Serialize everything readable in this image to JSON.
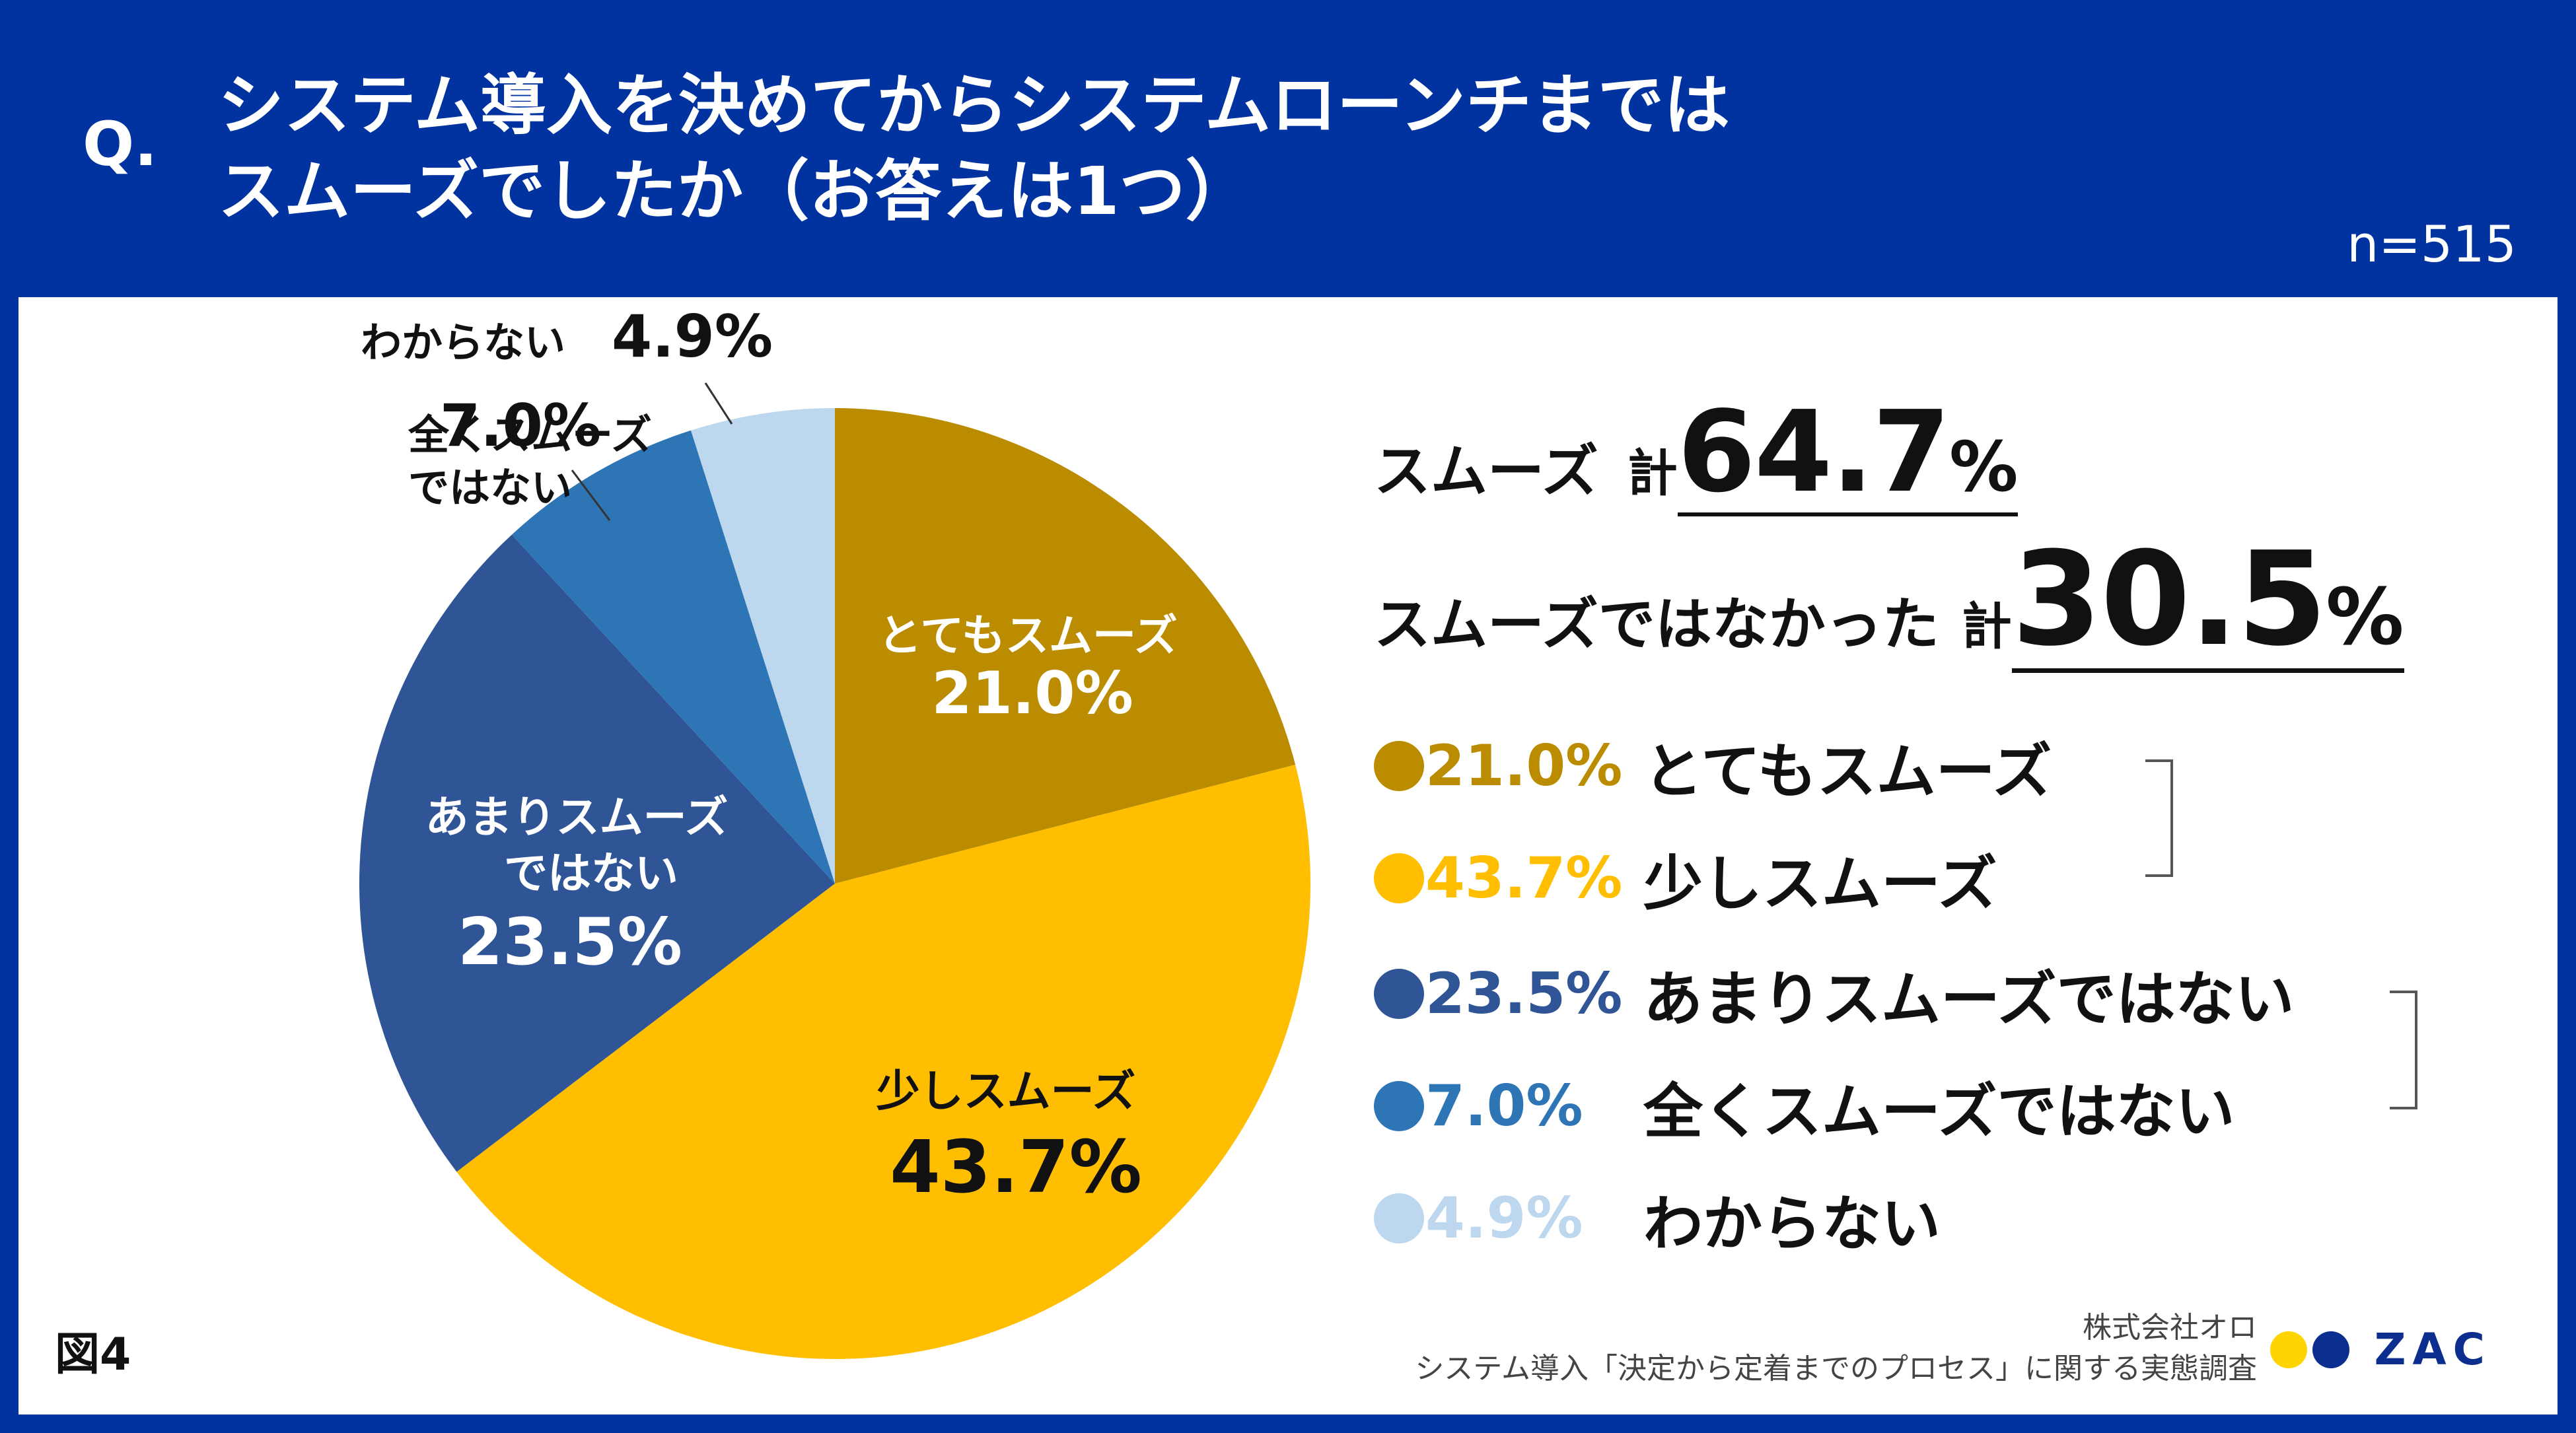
{
  "header": {
    "q_mark": "Q.",
    "title_line1": "システム導入を決めてからシステムローンチまでは",
    "title_line2": "スムーズでしたか（お答えは1つ）",
    "sample_size": "n=515"
  },
  "chart_data": {
    "type": "pie",
    "title": "システム導入を決めてからシステムローンチまではスムーズでしたか（お答えは1つ）",
    "unit": "%",
    "start_angle": "12 o'clock, clockwise",
    "slices": [
      {
        "label": "とてもスムーズ",
        "value": 21.0,
        "value_text": "21.0%",
        "color": "#bb8c00",
        "label_color": "#ffffff"
      },
      {
        "label": "少しスムーズ",
        "value": 43.7,
        "value_text": "43.7%",
        "color": "#ffbe00",
        "label_color": "#111111"
      },
      {
        "label": "あまりスムーズではない",
        "label_lines": [
          "あまりスムーズ",
          "ではない"
        ],
        "value": 23.5,
        "value_text": "23.5%",
        "color": "#2f5597",
        "label_color": "#ffffff"
      },
      {
        "label": "全くスムーズではない",
        "label_lines": [
          "全くスムーズ",
          "ではない"
        ],
        "value": 7.0,
        "value_text": "7.0%",
        "color": "#2e75b6",
        "label_color": "#111111"
      },
      {
        "label": "わからない",
        "value": 4.9,
        "value_text": "4.9%",
        "color": "#bdd7ee",
        "label_color": "#111111"
      }
    ]
  },
  "summary": {
    "smooth_label": "スムーズ",
    "smooth_kei": "計",
    "smooth_value": "64.7",
    "smooth_pct": "%",
    "not_smooth_label": "スムーズではなかった",
    "not_smooth_kei": "計",
    "not_smooth_value": "30.5",
    "not_smooth_pct": "%"
  },
  "legend": [
    {
      "pct": "21.0%",
      "label": "とてもスムーズ",
      "color": "#bb8c00",
      "pct_color": "#bb8c00"
    },
    {
      "pct": "43.7%",
      "label": "少しスムーズ",
      "color": "#ffbe00",
      "pct_color": "#ffbe00"
    },
    {
      "pct": "23.5%",
      "label": "あまりスムーズではない",
      "color": "#2f5597",
      "pct_color": "#2f5597"
    },
    {
      "pct": "7.0%",
      "label": "全くスムーズではない",
      "color": "#2e75b6",
      "pct_color": "#2e75b6"
    },
    {
      "pct": "4.9%",
      "label": "わからない",
      "color": "#bdd7ee",
      "pct_color": "#bdd7ee"
    }
  ],
  "footer": {
    "figure_label": "図4",
    "source_company": "株式会社オロ",
    "source_survey": "システム導入「決定から定着までのプロセス」に関する実態調査",
    "logo_text": "ZAC",
    "logo_colors": [
      "#ffd400",
      "#0b2e8f"
    ]
  }
}
